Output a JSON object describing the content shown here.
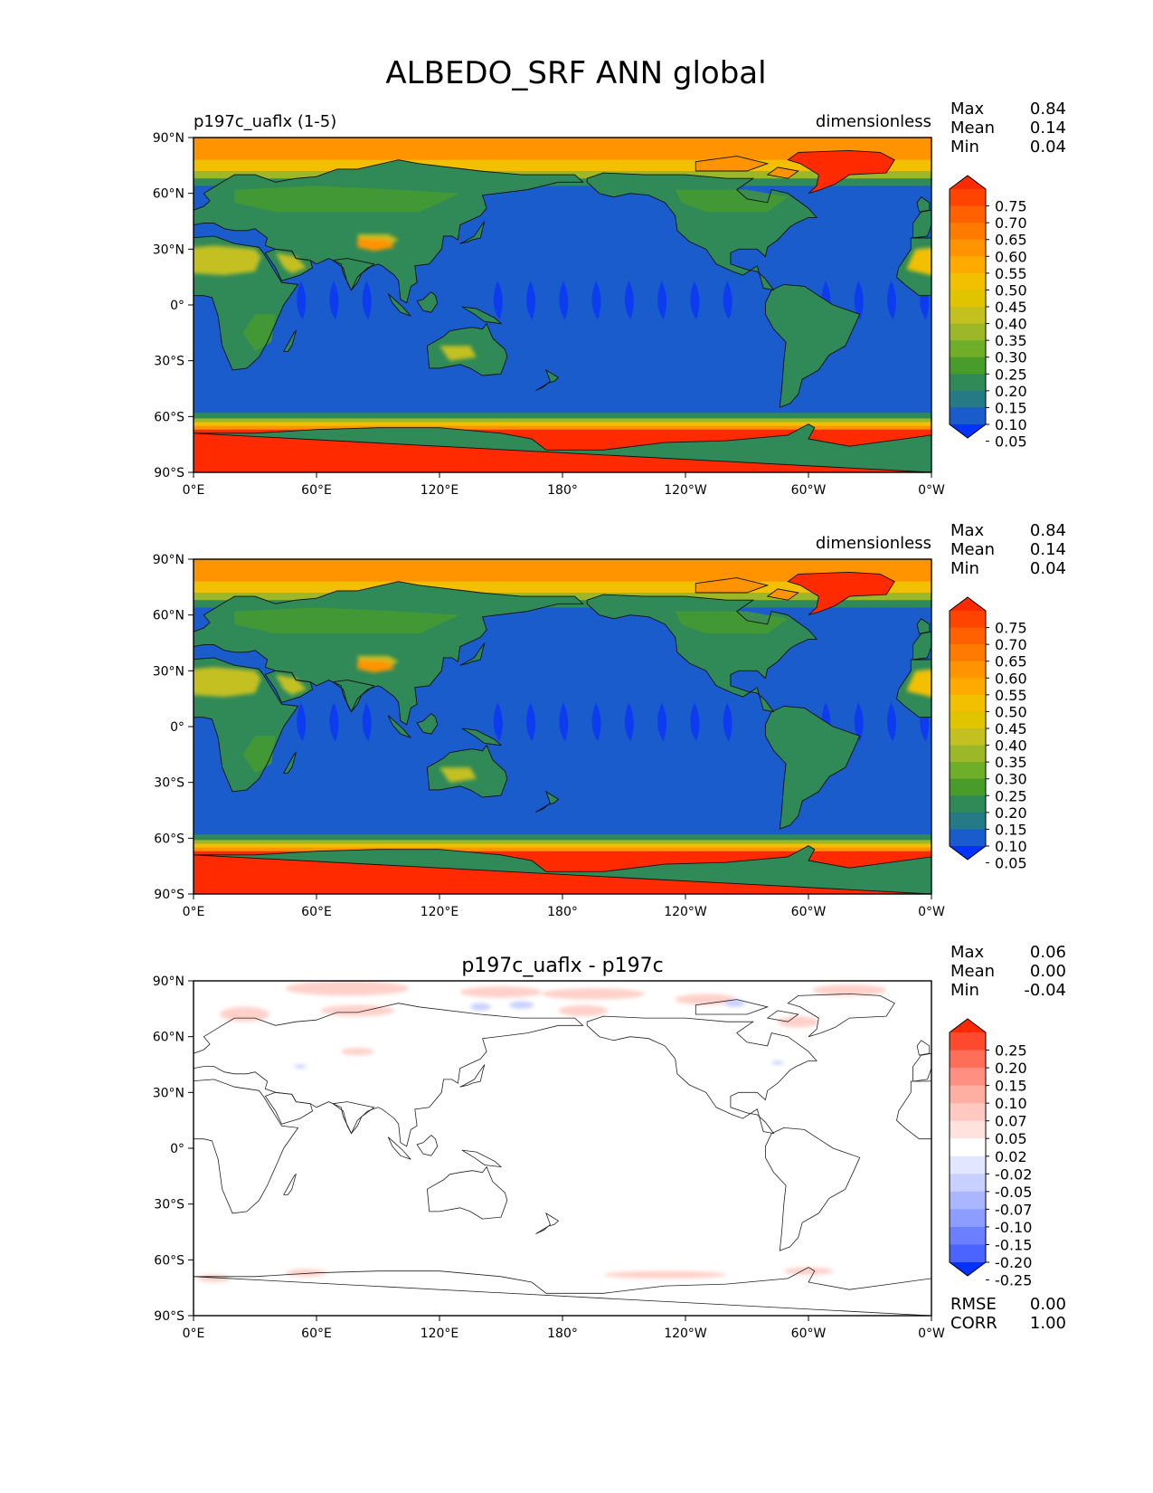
{
  "chart_data": {
    "type": "heatmap",
    "title": "ALBEDO_SRF ANN global",
    "panels": [
      {
        "left_title": "p197c_uaflx (1-5)",
        "center_title": "",
        "units": "dimensionless",
        "stats": [
          {
            "label": "Max",
            "value": "0.84"
          },
          {
            "label": "Mean",
            "value": "0.14"
          },
          {
            "label": "Min",
            "value": "0.04"
          }
        ],
        "colorbar": {
          "ticks": [
            "0.75",
            "0.70",
            "0.65",
            "0.60",
            "0.55",
            "0.50",
            "0.45",
            "0.40",
            "0.35",
            "0.30",
            "0.25",
            "0.20",
            "0.15",
            "0.10",
            "0.05"
          ],
          "colors": [
            "#ff2a00",
            "#ff4400",
            "#ff6000",
            "#ff7a00",
            "#ff9400",
            "#ffaa00",
            "#f2c000",
            "#e0c400",
            "#c4c020",
            "#9cb828",
            "#6fae28",
            "#4a9c2a",
            "#2f8a58",
            "#257a86",
            "#1a5ccc",
            "#0033ff"
          ]
        },
        "xlabels": [
          "0°E",
          "60°E",
          "120°E",
          "180°",
          "120°W",
          "60°W",
          "0°W"
        ],
        "ylabels": [
          "90°N",
          "60°N",
          "30°N",
          "0°",
          "30°S",
          "60°S",
          "90°S"
        ],
        "field": "albedo"
      },
      {
        "left_title": "",
        "center_title": "",
        "units": "dimensionless",
        "stats": [
          {
            "label": "Max",
            "value": "0.84"
          },
          {
            "label": "Mean",
            "value": "0.14"
          },
          {
            "label": "Min",
            "value": "0.04"
          }
        ],
        "colorbar": {
          "ticks": [
            "0.75",
            "0.70",
            "0.65",
            "0.60",
            "0.55",
            "0.50",
            "0.45",
            "0.40",
            "0.35",
            "0.30",
            "0.25",
            "0.20",
            "0.15",
            "0.10",
            "0.05"
          ],
          "colors": [
            "#ff2a00",
            "#ff4400",
            "#ff6000",
            "#ff7a00",
            "#ff9400",
            "#ffaa00",
            "#f2c000",
            "#e0c400",
            "#c4c020",
            "#9cb828",
            "#6fae28",
            "#4a9c2a",
            "#2f8a58",
            "#257a86",
            "#1a5ccc",
            "#0033ff"
          ]
        },
        "xlabels": [
          "0°E",
          "60°E",
          "120°E",
          "180°",
          "120°W",
          "60°W",
          "0°W"
        ],
        "ylabels": [
          "90°N",
          "60°N",
          "30°N",
          "0°",
          "30°S",
          "60°S",
          "90°S"
        ],
        "field": "albedo"
      },
      {
        "left_title": "",
        "center_title": "p197c_uaflx - p197c",
        "units": "",
        "stats": [
          {
            "label": "Max",
            "value": "0.06"
          },
          {
            "label": "Mean",
            "value": "0.00"
          },
          {
            "label": "Min",
            "value": "-0.04"
          }
        ],
        "bottom_stats": [
          {
            "label": "RMSE",
            "value": "0.00"
          },
          {
            "label": "CORR",
            "value": "1.00"
          }
        ],
        "colorbar": {
          "ticks": [
            "0.25",
            "0.20",
            "0.15",
            "0.10",
            "0.07",
            "0.05",
            "0.02",
            "-0.02",
            "-0.05",
            "-0.07",
            "-0.10",
            "-0.15",
            "-0.20",
            "-0.25"
          ],
          "colors": [
            "#ff2a00",
            "#ff4a30",
            "#ff6e58",
            "#ff8f80",
            "#ffaea2",
            "#ffc8c0",
            "#ffe2de",
            "#ffffff",
            "#e2e6ff",
            "#c8d0ff",
            "#aab6ff",
            "#8c9cff",
            "#6c80ff",
            "#4c64ff",
            "#0033ff"
          ]
        },
        "xlabels": [
          "0°E",
          "60°E",
          "120°E",
          "180°",
          "120°W",
          "60°W",
          "0°W"
        ],
        "ylabels": [
          "90°N",
          "60°N",
          "30°N",
          "0°",
          "30°S",
          "60°S",
          "90°S"
        ],
        "field": "difference"
      }
    ]
  }
}
